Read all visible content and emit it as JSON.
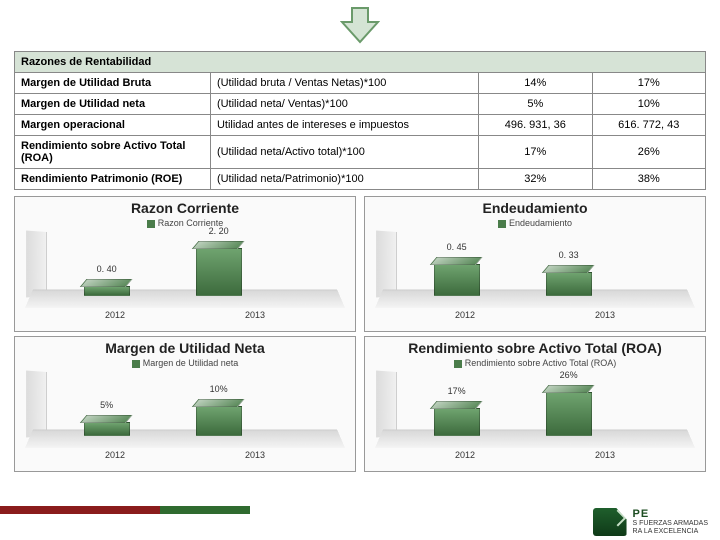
{
  "table": {
    "header": "Razones de Rentabilidad",
    "rows": [
      {
        "name": "Margen de Utilidad Bruta",
        "formula": "(Utilidad bruta / Ventas Netas)*100",
        "v1": "14%",
        "v2": "17%"
      },
      {
        "name": "Margen de Utilidad neta",
        "formula": "(Utilidad neta/ Ventas)*100",
        "v1": "5%",
        "v2": "10%"
      },
      {
        "name": "Margen operacional",
        "formula": "Utilidad antes de intereses e impuestos",
        "v1": "496. 931, 36",
        "v2": "616. 772, 43"
      },
      {
        "name": "Rendimiento sobre Activo Total (ROA)",
        "formula": "(Utilidad neta/Activo total)*100",
        "v1": "17%",
        "v2": "26%"
      },
      {
        "name": "Rendimiento Patrimonio (ROE)",
        "formula": "(Utilidad neta/Patrimonio)*100",
        "v1": "32%",
        "v2": "38%"
      }
    ]
  },
  "charts": [
    {
      "title": "Razon Corriente",
      "legend": "Razon Corriente",
      "x": [
        "2012",
        "2013"
      ],
      "labels": [
        "0. 40",
        "2. 20"
      ],
      "heights": [
        10,
        48
      ],
      "color": "#5a8a5a"
    },
    {
      "title": "Endeudamiento",
      "legend": "Endeudamiento",
      "x": [
        "2012",
        "2013"
      ],
      "labels": [
        "0. 45",
        "0. 33"
      ],
      "heights": [
        32,
        24
      ],
      "color": "#5a8a5a"
    },
    {
      "title": "Margen de Utilidad Neta",
      "legend": "Margen de Utilidad neta",
      "x": [
        "2012",
        "2013"
      ],
      "labels": [
        "5%",
        "10%"
      ],
      "heights": [
        14,
        30
      ],
      "color": "#5a8a5a"
    },
    {
      "title": "Rendimiento sobre Activo Total (ROA)",
      "legend": "Rendimiento sobre Activo Total (ROA)",
      "x": [
        "2012",
        "2013"
      ],
      "labels": [
        "17%",
        "26%"
      ],
      "heights": [
        28,
        44
      ],
      "color": "#5a8a5a"
    }
  ],
  "arrow": {
    "stroke": "#6a9a6a",
    "fill": "#d4e4d4"
  },
  "logo": {
    "brand": "PE",
    "line1": "S FUERZAS ARMADAS",
    "line2": "RA LA EXCELENCIA"
  }
}
